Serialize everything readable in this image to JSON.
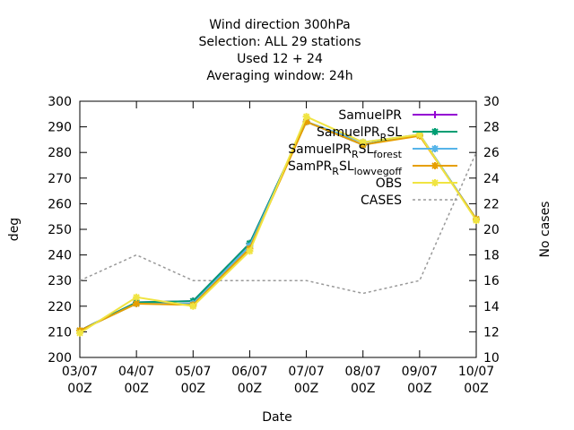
{
  "chart_data": {
    "type": "line",
    "title_lines": [
      "Wind direction 300hPa",
      "Selection: ALL      29 stations",
      "Used  12 + 24",
      "Averaging window: 24h"
    ],
    "xlabel": "Date",
    "ylabel": "deg",
    "y2label": "No cases",
    "categories": [
      "03/07\n00Z",
      "04/07\n00Z",
      "05/07\n00Z",
      "06/07\n00Z",
      "07/07\n00Z",
      "08/07\n00Z",
      "09/07\n00Z",
      "10/07\n00Z"
    ],
    "ylim": [
      200,
      300
    ],
    "yticks": [
      200,
      210,
      220,
      230,
      240,
      250,
      260,
      270,
      280,
      290,
      300
    ],
    "y2lim": [
      10,
      30
    ],
    "y2ticks": [
      10,
      12,
      14,
      16,
      18,
      20,
      22,
      24,
      26,
      28,
      30
    ],
    "grid": false,
    "legend_position": "top-right",
    "series": [
      {
        "name": "SamuelPR",
        "axis": "y",
        "color": "#9400d3",
        "style": "solid",
        "marker": "plus",
        "values": [
          210.5,
          221.5,
          222,
          244.5,
          292,
          283,
          287,
          254
        ]
      },
      {
        "name": "SamuelPR_R_SL",
        "axis": "y",
        "color": "#009e73",
        "style": "solid",
        "marker": "star",
        "values": [
          210.5,
          221.5,
          222,
          244.5,
          292,
          283,
          287,
          254
        ]
      },
      {
        "name": "SamuelPR_R_SL_forest",
        "axis": "y",
        "color": "#56b4e9",
        "style": "solid",
        "marker": "star",
        "values": [
          210.5,
          221,
          221,
          243.5,
          292,
          284,
          287,
          254
        ]
      },
      {
        "name": "SamPR_R_SL_lowvegoff",
        "axis": "y",
        "color": "#e69f00",
        "style": "solid",
        "marker": "star",
        "values": [
          210.5,
          221,
          220.5,
          242.5,
          292,
          283,
          286.5,
          254
        ]
      },
      {
        "name": "OBS",
        "axis": "y",
        "color": "#f0e442",
        "style": "solid",
        "marker": "star",
        "values": [
          209.5,
          223.5,
          220,
          241.5,
          294,
          284,
          287,
          253.5
        ]
      },
      {
        "name": "CASES",
        "axis": "y2",
        "color": "#999999",
        "style": "dashed",
        "marker": "none",
        "values": [
          16,
          18,
          16,
          16,
          16,
          15,
          16,
          26
        ]
      }
    ]
  },
  "legend": [
    {
      "parts": [
        [
          "SamuelPR",
          ""
        ]
      ],
      "color": "#9400d3",
      "style": "solid",
      "marker": "plus"
    },
    {
      "parts": [
        [
          "SamuelPR",
          ""
        ],
        [
          "R",
          "sub"
        ],
        [
          "SL",
          ""
        ]
      ],
      "color": "#009e73",
      "style": "solid",
      "marker": "star"
    },
    {
      "parts": [
        [
          "SamuelPR",
          ""
        ],
        [
          "R",
          "sub"
        ],
        [
          "SL",
          ""
        ],
        [
          "forest",
          "sub"
        ]
      ],
      "color": "#56b4e9",
      "style": "solid",
      "marker": "star"
    },
    {
      "parts": [
        [
          "SamPR",
          ""
        ],
        [
          "R",
          "sub"
        ],
        [
          "SL",
          ""
        ],
        [
          "lowvegoff",
          "sub"
        ]
      ],
      "color": "#e69f00",
      "style": "solid",
      "marker": "star"
    },
    {
      "parts": [
        [
          "OBS",
          ""
        ]
      ],
      "color": "#f0e442",
      "style": "solid",
      "marker": "star"
    },
    {
      "parts": [
        [
          "CASES",
          ""
        ]
      ],
      "color": "#999999",
      "style": "dashed",
      "marker": "none"
    }
  ]
}
